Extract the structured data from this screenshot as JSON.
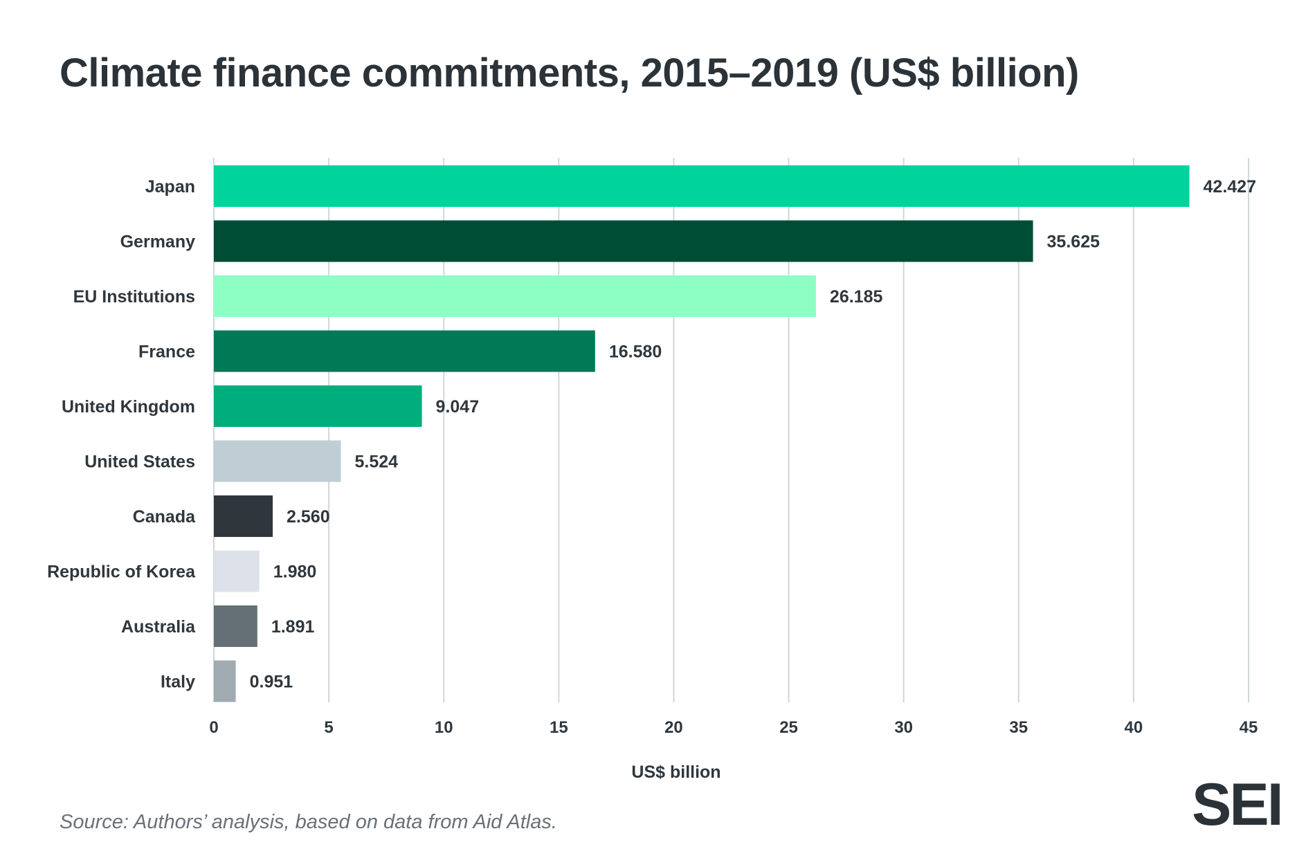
{
  "title": "Climate finance commitments, 2015–2019 (US$ billion)",
  "source": "Source: Authors’ analysis, based on data from Aid Atlas.",
  "logo": "SEI",
  "chart_data": {
    "type": "bar",
    "orientation": "horizontal",
    "categories": [
      "Japan",
      "Germany",
      "EU Institutions",
      "France",
      "United Kingdom",
      "United States",
      "Canada",
      "Republic of Korea",
      "Australia",
      "Italy"
    ],
    "values": [
      42.427,
      35.625,
      26.185,
      16.58,
      9.047,
      5.524,
      2.56,
      1.98,
      1.891,
      0.951
    ],
    "value_labels": [
      "42.427",
      "35.625",
      "26.185",
      "16.580",
      "9.047",
      "5.524",
      "2.560",
      "1.980",
      "1.891",
      "0.951"
    ],
    "colors": [
      "#00d39c",
      "#004d36",
      "#8effc4",
      "#007a56",
      "#00ae7d",
      "#bfced4",
      "#2f373d",
      "#dde2ea",
      "#646f76",
      "#9fabb0"
    ],
    "xlabel": "US$ billion",
    "ylabel": "",
    "xlim": [
      0,
      45
    ],
    "xticks": [
      0,
      5,
      10,
      15,
      20,
      25,
      30,
      35,
      40,
      45
    ],
    "grid": true
  }
}
